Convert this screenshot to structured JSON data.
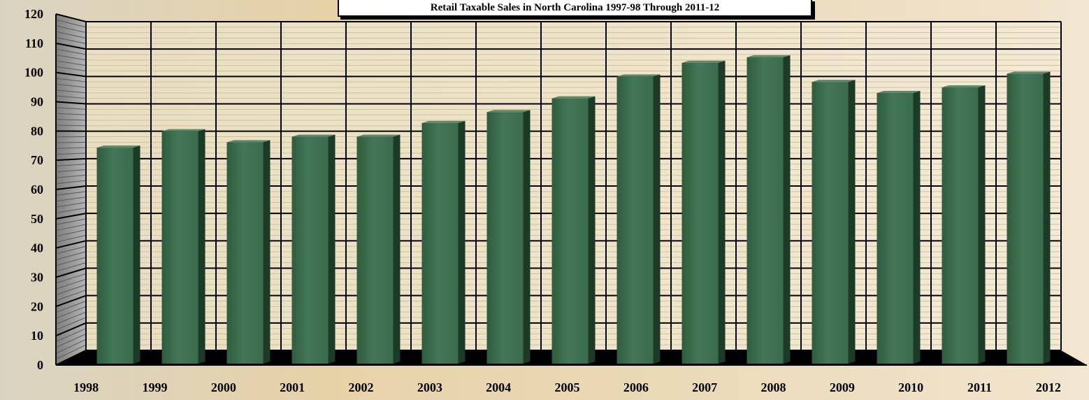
{
  "chart_data": {
    "type": "bar",
    "title": "Retail Taxable Sales in North Carolina 1997-98 Through 2011-12",
    "categories": [
      "1998",
      "1999",
      "2000",
      "2001",
      "2002",
      "2003",
      "2004",
      "2005",
      "2006",
      "2007",
      "2008",
      "2009",
      "2010",
      "2011",
      "2012"
    ],
    "values": [
      74,
      80,
      76,
      78,
      78,
      83,
      87,
      92,
      100,
      105,
      107,
      98,
      94,
      96,
      101
    ],
    "xlabel": "",
    "ylabel": "",
    "ylim": [
      0,
      120
    ],
    "yticks": [
      "0",
      "10",
      "20",
      "30",
      "40",
      "50",
      "60",
      "70",
      "80",
      "90",
      "100",
      "110",
      "120"
    ],
    "grid": true,
    "legend": "none",
    "colors": {
      "bar_face": "#3e7150",
      "bar_side": "#1d3a26",
      "bar_top": "#5a8a68",
      "wall": "#efe3c2",
      "side_wall": "#9a9a9a",
      "floor": "#000000"
    }
  }
}
